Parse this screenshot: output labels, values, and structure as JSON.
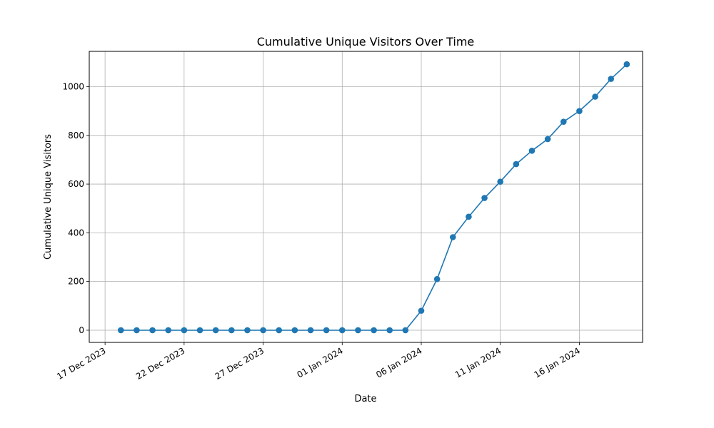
{
  "chart_data": {
    "type": "line",
    "title": "Cumulative Unique Visitors Over Time",
    "xlabel": "Date",
    "ylabel": "Cumulative Unique Visitors",
    "xlim": [
      "2023-12-16",
      "2024-01-20"
    ],
    "ylim": [
      -50,
      1145
    ],
    "x_ticks": [
      "2023-12-17",
      "2023-12-22",
      "2023-12-27",
      "2024-01-01",
      "2024-01-06",
      "2024-01-11",
      "2024-01-16"
    ],
    "x_tick_labels": [
      "17 Dec 2023",
      "22 Dec 2023",
      "27 Dec 2023",
      "01 Jan 2024",
      "06 Jan 2024",
      "11 Jan 2024",
      "16 Jan 2024"
    ],
    "y_ticks": [
      0,
      200,
      400,
      600,
      800,
      1000
    ],
    "y_tick_labels": [
      "0",
      "200",
      "400",
      "600",
      "800",
      "1000"
    ],
    "grid": true,
    "series": [
      {
        "color": "#1f77b4",
        "marker": "circle",
        "x": [
          "2023-12-18",
          "2023-12-19",
          "2023-12-20",
          "2023-12-21",
          "2023-12-22",
          "2023-12-23",
          "2023-12-24",
          "2023-12-25",
          "2023-12-26",
          "2023-12-27",
          "2023-12-28",
          "2023-12-29",
          "2023-12-30",
          "2023-12-31",
          "2024-01-01",
          "2024-01-02",
          "2024-01-03",
          "2024-01-04",
          "2024-01-05",
          "2024-01-06",
          "2024-01-07",
          "2024-01-08",
          "2024-01-09",
          "2024-01-10",
          "2024-01-11",
          "2024-01-12",
          "2024-01-13",
          "2024-01-14",
          "2024-01-15",
          "2024-01-16",
          "2024-01-17",
          "2024-01-18",
          "2024-01-19"
        ],
        "y": [
          0,
          0,
          0,
          0,
          0,
          0,
          0,
          0,
          0,
          0,
          0,
          0,
          0,
          0,
          0,
          0,
          0,
          0,
          0,
          80,
          210,
          382,
          466,
          543,
          610,
          682,
          737,
          785,
          856,
          900,
          959,
          1032,
          1092
        ]
      }
    ]
  }
}
